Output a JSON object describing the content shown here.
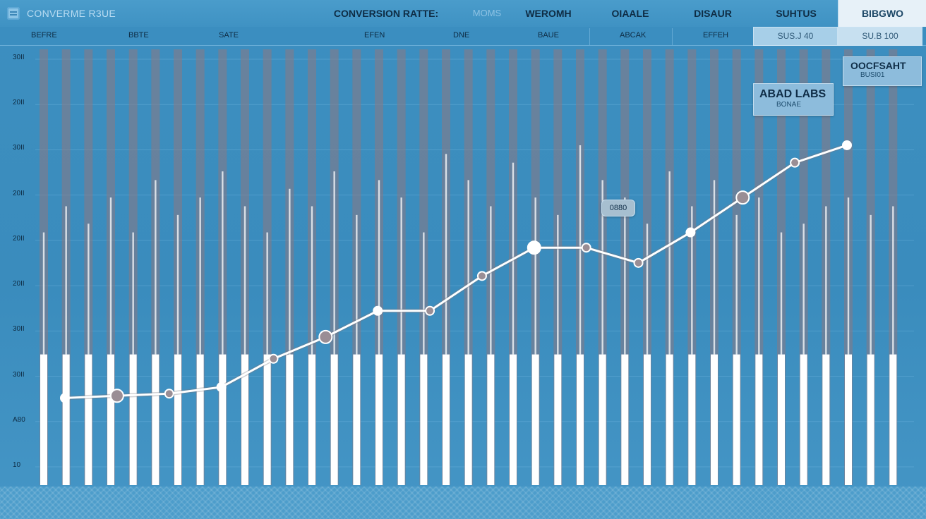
{
  "app": {
    "title": "CONVERME R3UE",
    "icon": "menu-icon"
  },
  "tabs": [
    {
      "label": "CONVERSION RATTE:",
      "style": "bold"
    },
    {
      "label": "MOMS",
      "style": "dim"
    },
    {
      "label": "WEROMH",
      "style": "bold"
    },
    {
      "label": "OIAALE",
      "style": "bold"
    },
    {
      "label": "DISAUR",
      "style": "bold"
    },
    {
      "label": "SUHTUS",
      "style": "bold"
    },
    {
      "label": "BIBGWO",
      "style": "active"
    }
  ],
  "columns": [
    "BEFRE",
    "BBTE",
    "SATE",
    "EFEN",
    "DNE",
    "BAUE",
    "ABCAK",
    "EFFEH"
  ],
  "value_cells": [
    "SUS.J 40",
    "SU.B 100"
  ],
  "callouts": [
    {
      "title": "OOCFSAHT",
      "subtitle": "BUSI01"
    },
    {
      "title": "ABAD LABS",
      "subtitle": "BONAE"
    },
    {
      "title": "0880"
    }
  ],
  "colors": {
    "background": "#3d8fc0",
    "bar_track": "#8a7e86",
    "bar_fill": "#ffffff",
    "line": "#ffffff",
    "marker": "#9a8e95"
  },
  "chart_data": {
    "type": "line",
    "yticks": [
      "30II",
      "20II",
      "30II",
      "20II",
      "20II",
      "20II",
      "30II",
      "30II",
      "A80",
      "10"
    ],
    "series": [
      {
        "values": [
          20,
          20.5,
          21,
          22.5,
          29,
          34,
          40,
          40,
          48,
          54.5,
          54.5,
          51,
          58,
          66,
          74,
          78
        ]
      }
    ],
    "bars": {
      "count": 39,
      "base_value": 30,
      "peak_values": [
        58,
        64,
        60,
        66,
        58,
        70,
        62,
        66,
        72,
        64,
        58,
        68,
        64,
        72,
        62,
        70,
        66,
        58,
        76,
        70,
        64,
        74,
        66,
        62,
        78,
        70,
        66,
        60,
        72,
        64,
        70,
        62,
        66,
        58,
        60,
        64,
        66,
        62,
        64
      ]
    },
    "ylim": [
      0,
      100
    ],
    "grid": true
  }
}
